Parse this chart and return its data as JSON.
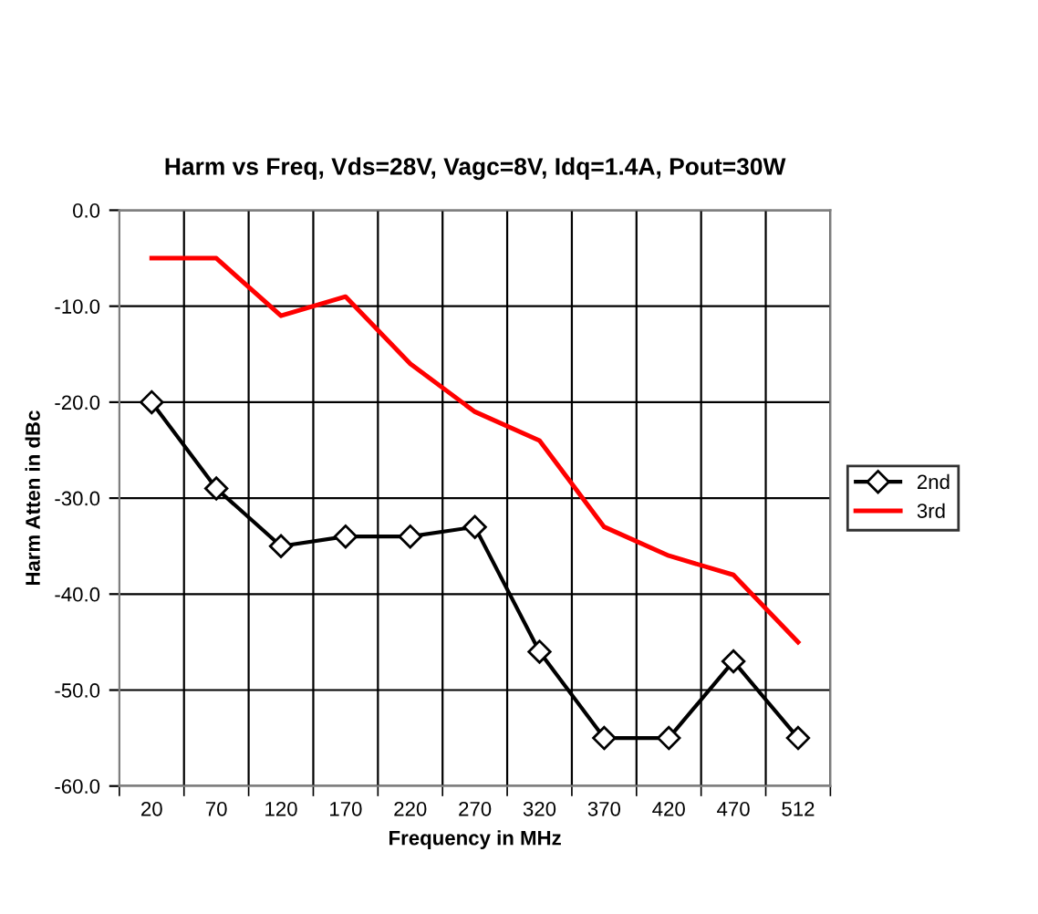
{
  "chart_data": {
    "type": "line",
    "title": "Harm vs Freq, Vds=28V, Vagc=8V, Idq=1.4A, Pout=30W",
    "xlabel": "Frequency in MHz",
    "ylabel": "Harm Atten in dBc",
    "categories": [
      "20",
      "70",
      "120",
      "170",
      "220",
      "270",
      "320",
      "370",
      "420",
      "470",
      "512"
    ],
    "series": [
      {
        "name": "2nd",
        "color": "#000000",
        "marker": "diamond",
        "values": [
          -20,
          -29,
          -35,
          -34,
          -34,
          -33,
          -46,
          -55,
          -55,
          -47,
          -55
        ]
      },
      {
        "name": "3rd",
        "color": "#ff0000",
        "marker": "none",
        "values": [
          -5,
          -5,
          -11,
          -9,
          -16,
          -21,
          -24,
          -33,
          -36,
          -38,
          -45
        ]
      }
    ],
    "ylim": [
      -60,
      0
    ],
    "yticks": [
      {
        "value": -60,
        "label": "-60.0"
      },
      {
        "value": -50,
        "label": "-50.0"
      },
      {
        "value": -40,
        "label": "-40.0"
      },
      {
        "value": -30,
        "label": "-30.0"
      },
      {
        "value": -20,
        "label": "-20.0"
      },
      {
        "value": -10,
        "label": "-10.0"
      },
      {
        "value": 0,
        "label": "0.0"
      }
    ],
    "grid": true,
    "legend": "right",
    "line_style": "solid"
  }
}
